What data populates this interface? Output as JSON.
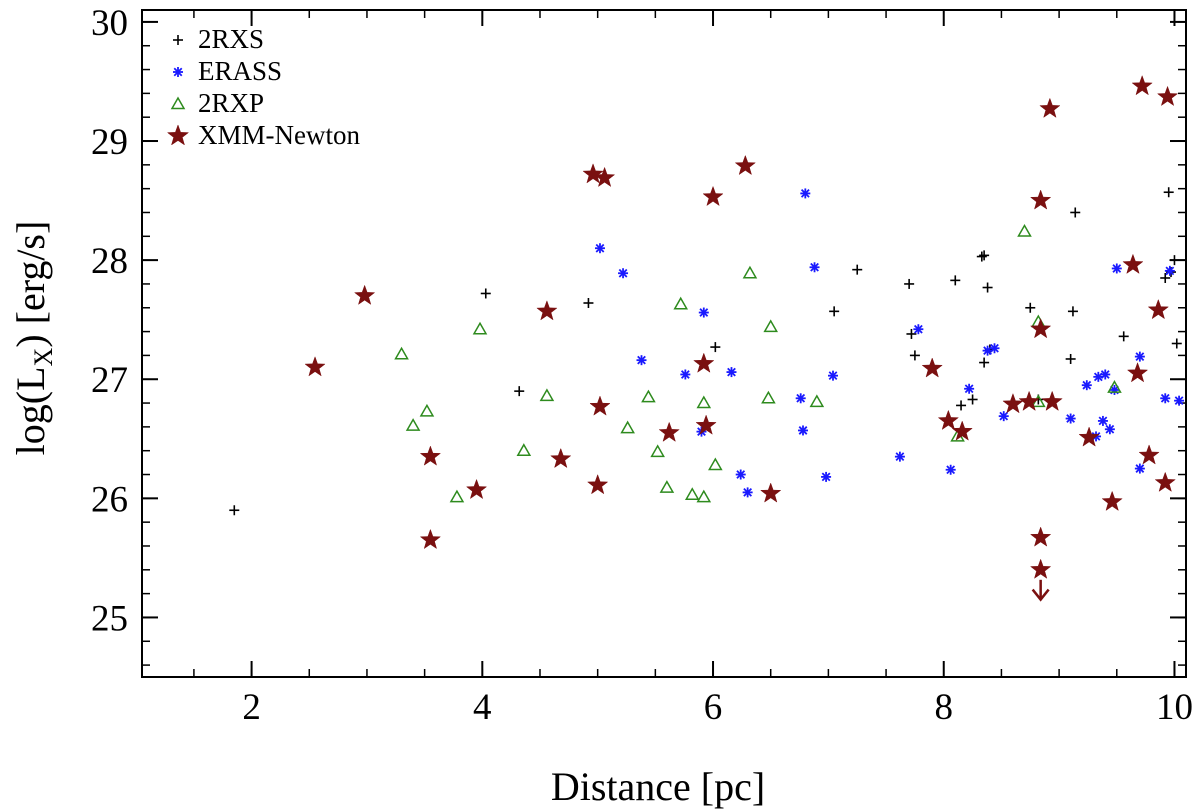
{
  "chart_data": {
    "type": "scatter",
    "xlabel": "Distance [pc]",
    "ylabel": "log(L",
    "ylabel_sub": "X",
    "ylabel_suffix": ") [erg/s]",
    "xlim": [
      1.05,
      10.1
    ],
    "ylim": [
      24.5,
      30.1
    ],
    "xticks": [
      2,
      4,
      6,
      8,
      10
    ],
    "yticks": [
      25,
      26,
      27,
      28,
      29,
      30
    ],
    "x_minor_step": 0.5,
    "y_minor_step": 0.2,
    "legend_position": "top-left",
    "series": [
      {
        "name": "2RXS",
        "marker": "plus",
        "color": "#000000",
        "points": [
          [
            1.85,
            25.9
          ],
          [
            4.03,
            27.72
          ],
          [
            4.32,
            26.9
          ],
          [
            4.92,
            27.64
          ],
          [
            6.02,
            27.27
          ],
          [
            7.05,
            27.57
          ],
          [
            7.25,
            27.92
          ],
          [
            7.7,
            27.8
          ],
          [
            7.72,
            27.38
          ],
          [
            7.75,
            27.2
          ],
          [
            8.1,
            27.83
          ],
          [
            8.15,
            26.78
          ],
          [
            8.25,
            26.83
          ],
          [
            8.33,
            28.03
          ],
          [
            8.35,
            28.04
          ],
          [
            8.35,
            27.14
          ],
          [
            8.38,
            27.77
          ],
          [
            8.4,
            27.25
          ],
          [
            8.75,
            27.6
          ],
          [
            8.82,
            26.83
          ],
          [
            9.1,
            27.17
          ],
          [
            9.12,
            27.57
          ],
          [
            9.14,
            28.4
          ],
          [
            9.56,
            27.36
          ],
          [
            9.92,
            27.85
          ],
          [
            9.95,
            28.57
          ],
          [
            9.97,
            27.9
          ],
          [
            10.0,
            28.0
          ],
          [
            10.02,
            27.3
          ]
        ]
      },
      {
        "name": "ERASS",
        "marker": "asterisk",
        "color": "#1a1aff",
        "points": [
          [
            5.02,
            28.1
          ],
          [
            5.22,
            27.89
          ],
          [
            5.38,
            27.16
          ],
          [
            5.76,
            27.04
          ],
          [
            5.9,
            26.56
          ],
          [
            5.92,
            27.56
          ],
          [
            6.16,
            27.06
          ],
          [
            6.24,
            26.2
          ],
          [
            6.3,
            26.05
          ],
          [
            6.76,
            26.84
          ],
          [
            6.78,
            26.57
          ],
          [
            6.8,
            28.56
          ],
          [
            6.88,
            27.94
          ],
          [
            6.98,
            26.18
          ],
          [
            7.04,
            27.03
          ],
          [
            7.62,
            26.35
          ],
          [
            7.78,
            27.42
          ],
          [
            8.06,
            26.24
          ],
          [
            8.22,
            26.92
          ],
          [
            8.38,
            27.24
          ],
          [
            8.44,
            27.26
          ],
          [
            8.52,
            26.69
          ],
          [
            9.1,
            26.67
          ],
          [
            9.24,
            26.95
          ],
          [
            9.32,
            26.52
          ],
          [
            9.34,
            27.02
          ],
          [
            9.38,
            26.65
          ],
          [
            9.4,
            27.04
          ],
          [
            9.44,
            26.58
          ],
          [
            9.48,
            26.91
          ],
          [
            9.5,
            27.93
          ],
          [
            9.7,
            26.25
          ],
          [
            9.7,
            27.19
          ],
          [
            9.92,
            26.84
          ],
          [
            9.96,
            27.91
          ],
          [
            10.04,
            26.82
          ]
        ]
      },
      {
        "name": "2RXP",
        "marker": "triangle",
        "color": "#2e8b1e",
        "points": [
          [
            3.3,
            27.21
          ],
          [
            3.4,
            26.61
          ],
          [
            3.52,
            26.73
          ],
          [
            3.78,
            26.01
          ],
          [
            3.98,
            27.42
          ],
          [
            4.36,
            26.4
          ],
          [
            4.56,
            26.86
          ],
          [
            5.26,
            26.59
          ],
          [
            5.44,
            26.85
          ],
          [
            5.52,
            26.39
          ],
          [
            5.6,
            26.09
          ],
          [
            5.72,
            27.63
          ],
          [
            5.82,
            26.03
          ],
          [
            5.92,
            26.01
          ],
          [
            5.92,
            26.8
          ],
          [
            6.02,
            26.28
          ],
          [
            6.32,
            27.89
          ],
          [
            6.48,
            26.84
          ],
          [
            6.5,
            27.44
          ],
          [
            6.9,
            26.81
          ],
          [
            8.12,
            26.52
          ],
          [
            8.7,
            28.24
          ],
          [
            8.82,
            27.48
          ],
          [
            8.82,
            26.81
          ],
          [
            9.48,
            26.93
          ]
        ]
      },
      {
        "name": "XMM-Newton",
        "marker": "star",
        "color": "#7a1010",
        "points": [
          [
            2.55,
            27.1
          ],
          [
            2.98,
            27.7
          ],
          [
            3.55,
            25.65
          ],
          [
            3.55,
            26.35
          ],
          [
            3.95,
            26.07
          ],
          [
            4.56,
            27.57
          ],
          [
            4.68,
            26.33
          ],
          [
            4.96,
            28.72
          ],
          [
            5.0,
            26.11
          ],
          [
            5.02,
            26.77
          ],
          [
            5.06,
            28.69
          ],
          [
            5.62,
            26.55
          ],
          [
            5.92,
            27.13
          ],
          [
            5.94,
            26.61
          ],
          [
            6.0,
            28.53
          ],
          [
            6.28,
            28.79
          ],
          [
            6.5,
            26.04
          ],
          [
            7.9,
            27.09
          ],
          [
            8.04,
            26.65
          ],
          [
            8.16,
            26.56
          ],
          [
            8.6,
            26.79
          ],
          [
            8.74,
            26.81
          ],
          [
            8.84,
            28.5
          ],
          [
            8.84,
            27.42
          ],
          [
            8.84,
            25.67
          ],
          [
            8.84,
            25.4
          ],
          [
            8.92,
            29.27
          ],
          [
            8.94,
            26.81
          ],
          [
            9.26,
            26.51
          ],
          [
            9.46,
            25.97
          ],
          [
            9.64,
            27.96
          ],
          [
            9.68,
            27.05
          ],
          [
            9.72,
            29.46
          ],
          [
            9.78,
            26.36
          ],
          [
            9.86,
            27.58
          ],
          [
            9.92,
            26.13
          ],
          [
            9.94,
            29.37
          ]
        ]
      }
    ],
    "upper_limit_arrow": {
      "x": 8.84,
      "y_from": 25.4,
      "y_to": 25.15,
      "color": "#7a1010"
    }
  }
}
